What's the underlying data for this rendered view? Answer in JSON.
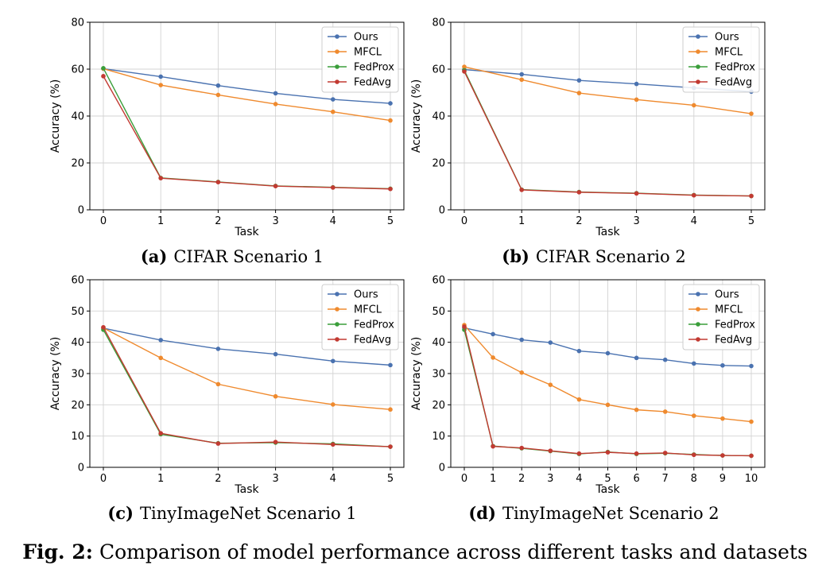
{
  "colors": {
    "Ours": "#4a72b0",
    "MFCL": "#ef8a2e",
    "FedProx": "#3a9e3a",
    "FedAvg": "#c23a32"
  },
  "caption": {
    "label": "Fig. 2:",
    "text": "Comparison of model performance across different tasks and datasets"
  },
  "chart_data": [
    {
      "type": "line",
      "subcaption_label": "(a)",
      "subcaption_text": "CIFAR Scenario 1",
      "xlabel": "Task",
      "ylabel": "Accuracy (%)",
      "ylim": [
        0,
        80
      ],
      "yticks": [
        0,
        20,
        40,
        60,
        80
      ],
      "x": [
        0,
        1,
        2,
        3,
        4,
        5
      ],
      "grid": true,
      "legend": "top-right",
      "series": [
        {
          "name": "Ours",
          "values": [
            60.2,
            56.8,
            53.0,
            49.7,
            47.1,
            45.4
          ]
        },
        {
          "name": "MFCL",
          "values": [
            60.2,
            53.2,
            49.0,
            45.1,
            41.8,
            38.1
          ]
        },
        {
          "name": "FedProx",
          "values": [
            60.4,
            13.6,
            11.9,
            10.2,
            9.6,
            9.0
          ]
        },
        {
          "name": "FedAvg",
          "values": [
            57.0,
            13.5,
            11.8,
            10.1,
            9.5,
            8.9
          ]
        }
      ]
    },
    {
      "type": "line",
      "subcaption_label": "(b)",
      "subcaption_text": "CIFAR Scenario 2",
      "xlabel": "Task",
      "ylabel": "Accuracy (%)",
      "ylim": [
        0,
        80
      ],
      "yticks": [
        0,
        20,
        40,
        60,
        80
      ],
      "x": [
        0,
        1,
        2,
        3,
        4,
        5
      ],
      "grid": true,
      "legend": "top-right",
      "series": [
        {
          "name": "Ours",
          "values": [
            59.8,
            57.8,
            55.2,
            53.7,
            52.0,
            50.4
          ]
        },
        {
          "name": "MFCL",
          "values": [
            61.0,
            55.5,
            49.8,
            47.0,
            44.6,
            41.0
          ]
        },
        {
          "name": "FedProx",
          "values": [
            59.5,
            8.6,
            7.6,
            7.1,
            6.3,
            5.9
          ]
        },
        {
          "name": "FedAvg",
          "values": [
            59.0,
            8.5,
            7.5,
            7.0,
            6.2,
            5.9
          ]
        }
      ]
    },
    {
      "type": "line",
      "subcaption_label": "(c)",
      "subcaption_text": "TinyImageNet Scenario 1",
      "xlabel": "Task",
      "ylabel": "Accuracy (%)",
      "ylim": [
        0,
        60
      ],
      "yticks": [
        0,
        10,
        20,
        30,
        40,
        50,
        60
      ],
      "x": [
        0,
        1,
        2,
        3,
        4,
        5
      ],
      "grid": true,
      "legend": "top-right",
      "series": [
        {
          "name": "Ours",
          "values": [
            44.5,
            40.7,
            37.9,
            36.2,
            34.0,
            32.7
          ]
        },
        {
          "name": "MFCL",
          "values": [
            44.6,
            35.0,
            26.6,
            22.7,
            20.1,
            18.5
          ]
        },
        {
          "name": "FedProx",
          "values": [
            44.0,
            10.6,
            7.7,
            7.9,
            7.5,
            6.6
          ]
        },
        {
          "name": "FedAvg",
          "values": [
            44.8,
            10.9,
            7.6,
            8.1,
            7.3,
            6.6
          ]
        }
      ]
    },
    {
      "type": "line",
      "subcaption_label": "(d)",
      "subcaption_text": "TinyImageNet Scenario 2",
      "xlabel": "Task",
      "ylabel": "Accuracy (%)",
      "ylim": [
        0,
        60
      ],
      "yticks": [
        0,
        10,
        20,
        30,
        40,
        50,
        60
      ],
      "x": [
        0,
        1,
        2,
        3,
        4,
        5,
        6,
        7,
        8,
        9,
        10
      ],
      "grid": true,
      "legend": "top-right",
      "series": [
        {
          "name": "Ours",
          "values": [
            44.6,
            42.6,
            40.8,
            39.9,
            37.2,
            36.5,
            35.0,
            34.4,
            33.2,
            32.6,
            32.4
          ]
        },
        {
          "name": "MFCL",
          "values": [
            45.5,
            35.1,
            30.3,
            26.4,
            21.7,
            20.0,
            18.4,
            17.8,
            16.5,
            15.6,
            14.6
          ]
        },
        {
          "name": "FedProx",
          "values": [
            44.0,
            6.8,
            6.1,
            5.2,
            4.3,
            4.9,
            4.3,
            4.5,
            4.1,
            3.8,
            3.7
          ]
        },
        {
          "name": "FedAvg",
          "values": [
            45.0,
            6.7,
            6.2,
            5.3,
            4.4,
            4.8,
            4.4,
            4.6,
            4.0,
            3.8,
            3.7
          ]
        }
      ]
    }
  ]
}
